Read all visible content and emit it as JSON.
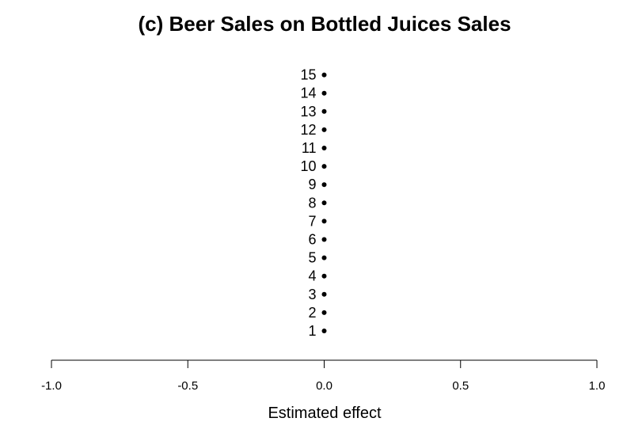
{
  "chart_data": {
    "type": "scatter",
    "title": "(c) Beer Sales on Bottled Juices Sales",
    "xlabel": "Estimated effect",
    "ylabel": "",
    "xlim": [
      -1.0,
      1.0
    ],
    "x_ticks": [
      -1.0,
      -0.5,
      0.0,
      0.5,
      1.0
    ],
    "x_tick_labels": [
      "-1.0",
      "-0.5",
      "0.0",
      "0.5",
      "1.0"
    ],
    "grid": false,
    "legend": "none",
    "point_color": "#000000",
    "points": [
      {
        "label": "1",
        "x": 0.0
      },
      {
        "label": "2",
        "x": 0.0
      },
      {
        "label": "3",
        "x": 0.0
      },
      {
        "label": "4",
        "x": 0.0
      },
      {
        "label": "5",
        "x": 0.0
      },
      {
        "label": "6",
        "x": 0.0
      },
      {
        "label": "7",
        "x": 0.0
      },
      {
        "label": "8",
        "x": 0.0
      },
      {
        "label": "9",
        "x": 0.0
      },
      {
        "label": "10",
        "x": 0.0
      },
      {
        "label": "11",
        "x": 0.0
      },
      {
        "label": "12",
        "x": 0.0
      },
      {
        "label": "13",
        "x": 0.0
      },
      {
        "label": "14",
        "x": 0.0
      },
      {
        "label": "15",
        "x": 0.0
      }
    ]
  }
}
